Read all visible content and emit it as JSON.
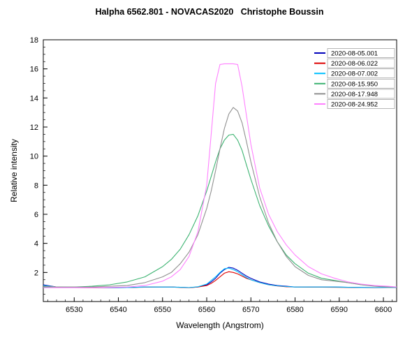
{
  "chart_data": {
    "type": "line",
    "title": "Halpha 6562.801 - NOVACAS2020   Christophe Boussin",
    "xlabel": "Wavelength (Angstrom)",
    "ylabel": "Relative intensity",
    "xlim": [
      6523,
      6603
    ],
    "ylim": [
      0,
      18
    ],
    "x_ticks": [
      6530,
      6540,
      6550,
      6560,
      6570,
      6580,
      6590,
      6600
    ],
    "y_ticks": [
      2,
      4,
      6,
      8,
      10,
      12,
      14,
      16,
      18
    ],
    "x_minor_step": 2,
    "y_minor_step": 0.5,
    "grid": false,
    "legend_position": "top-right",
    "x": [
      6523,
      6526,
      6530,
      6534,
      6538,
      6542,
      6546,
      6550,
      6552,
      6554,
      6556,
      6558,
      6560,
      6561,
      6562,
      6563,
      6564,
      6565,
      6566,
      6567,
      6568,
      6569,
      6570,
      6572,
      6574,
      6576,
      6578,
      6580,
      6583,
      6586,
      6589,
      6592,
      6595,
      6598,
      6601,
      6603
    ],
    "series": [
      {
        "name": "2020-08-05.001",
        "color": "#0000bb",
        "values": [
          1.15,
          1.0,
          0.97,
          0.96,
          0.95,
          0.96,
          1.0,
          1.0,
          1.0,
          0.98,
          0.96,
          1.0,
          1.15,
          1.35,
          1.6,
          1.95,
          2.2,
          2.35,
          2.3,
          2.15,
          1.95,
          1.75,
          1.6,
          1.35,
          1.2,
          1.1,
          1.05,
          1.0,
          1.0,
          1.0,
          1.0,
          0.98,
          0.97,
          0.96,
          0.97,
          0.97
        ]
      },
      {
        "name": "2020-08-06.022",
        "color": "#dd0000",
        "values": [
          1.1,
          1.0,
          0.96,
          0.95,
          0.95,
          0.96,
          0.99,
          1.0,
          1.0,
          0.97,
          0.95,
          1.0,
          1.1,
          1.25,
          1.45,
          1.7,
          1.95,
          2.05,
          2.0,
          1.9,
          1.75,
          1.6,
          1.5,
          1.3,
          1.15,
          1.07,
          1.02,
          1.0,
          0.99,
          0.99,
          0.98,
          0.97,
          0.96,
          0.95,
          0.96,
          0.96
        ]
      },
      {
        "name": "2020-08-07.002",
        "color": "#00bfff",
        "values": [
          1.1,
          1.0,
          0.97,
          0.96,
          0.95,
          0.96,
          1.0,
          1.0,
          1.0,
          0.98,
          0.96,
          1.02,
          1.2,
          1.45,
          1.7,
          2.0,
          2.25,
          2.3,
          2.2,
          2.05,
          1.85,
          1.65,
          1.5,
          1.3,
          1.15,
          1.08,
          1.03,
          1.0,
          1.0,
          1.0,
          1.0,
          0.98,
          0.97,
          0.96,
          0.97,
          0.97
        ]
      },
      {
        "name": "2020-08-15.950",
        "color": "#3cb371",
        "values": [
          1.0,
          1.0,
          1.0,
          1.05,
          1.15,
          1.35,
          1.7,
          2.4,
          2.9,
          3.6,
          4.6,
          5.9,
          7.6,
          8.6,
          9.6,
          10.5,
          11.1,
          11.45,
          11.5,
          11.1,
          10.4,
          9.4,
          8.4,
          6.6,
          5.2,
          4.1,
          3.2,
          2.6,
          1.95,
          1.6,
          1.45,
          1.3,
          1.15,
          1.08,
          1.02,
          1.0
        ]
      },
      {
        "name": "2020-08-17.948",
        "color": "#909090",
        "values": [
          1.05,
          1.0,
          1.0,
          1.0,
          1.05,
          1.1,
          1.3,
          1.7,
          2.0,
          2.6,
          3.4,
          4.6,
          6.4,
          7.6,
          9.0,
          10.5,
          11.9,
          12.9,
          13.35,
          13.1,
          12.3,
          11.0,
          9.6,
          7.2,
          5.4,
          4.1,
          3.1,
          2.4,
          1.8,
          1.5,
          1.4,
          1.3,
          1.15,
          1.05,
          1.0,
          1.0
        ]
      },
      {
        "name": "2020-08-24.952",
        "color": "#ff80ff",
        "values": [
          0.95,
          0.95,
          0.95,
          0.95,
          0.97,
          1.0,
          1.1,
          1.4,
          1.7,
          2.2,
          3.1,
          4.8,
          8.0,
          11.5,
          15.0,
          16.3,
          16.35,
          16.35,
          16.35,
          16.3,
          14.8,
          12.8,
          10.8,
          7.8,
          6.0,
          4.8,
          3.9,
          3.2,
          2.4,
          1.9,
          1.6,
          1.35,
          1.2,
          1.1,
          1.05,
          1.0
        ]
      }
    ]
  }
}
